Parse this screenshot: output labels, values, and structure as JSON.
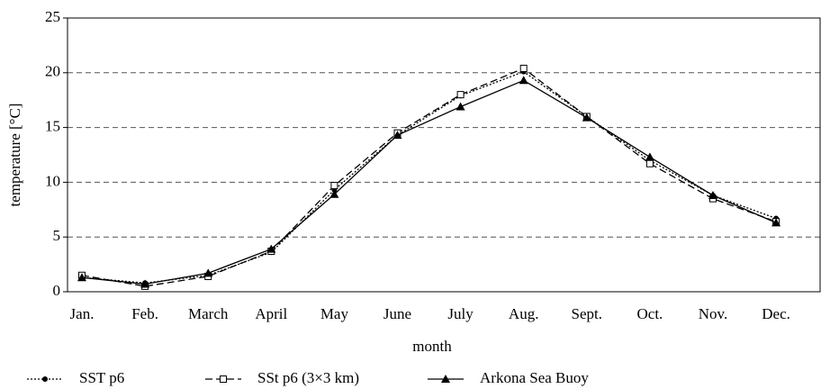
{
  "chart_data": {
    "type": "line",
    "x_label": "month",
    "y_label": "temperature [°C]",
    "categories": [
      "Jan.",
      "Feb.",
      "March",
      "April",
      "May",
      "June",
      "July",
      "Aug.",
      "Sept.",
      "Oct.",
      "Nov.",
      "Dec."
    ],
    "series": [
      {
        "name": "SST p6",
        "color": "#000000",
        "dash": "2,2",
        "marker": "circle",
        "values": [
          1.3,
          0.8,
          1.5,
          3.6,
          9.3,
          14.3,
          17.9,
          20.1,
          16.0,
          12.0,
          8.8,
          6.7
        ]
      },
      {
        "name": "SSt p6 (3×3 km)",
        "color": "#000000",
        "dash": "8,4",
        "marker": "square",
        "values": [
          1.5,
          0.5,
          1.4,
          3.7,
          9.7,
          14.5,
          18.0,
          20.4,
          16.0,
          11.7,
          8.5,
          6.4
        ]
      },
      {
        "name": "Arkona Sea Buoy",
        "color": "#000000",
        "dash": "none",
        "marker": "triangle",
        "values": [
          1.3,
          0.7,
          1.7,
          3.9,
          8.9,
          14.3,
          16.9,
          19.3,
          15.9,
          12.3,
          8.8,
          6.3
        ]
      }
    ],
    "ylim": [
      0,
      25
    ],
    "yticks": [
      0,
      5,
      10,
      15,
      20,
      25
    ],
    "grid": true
  }
}
